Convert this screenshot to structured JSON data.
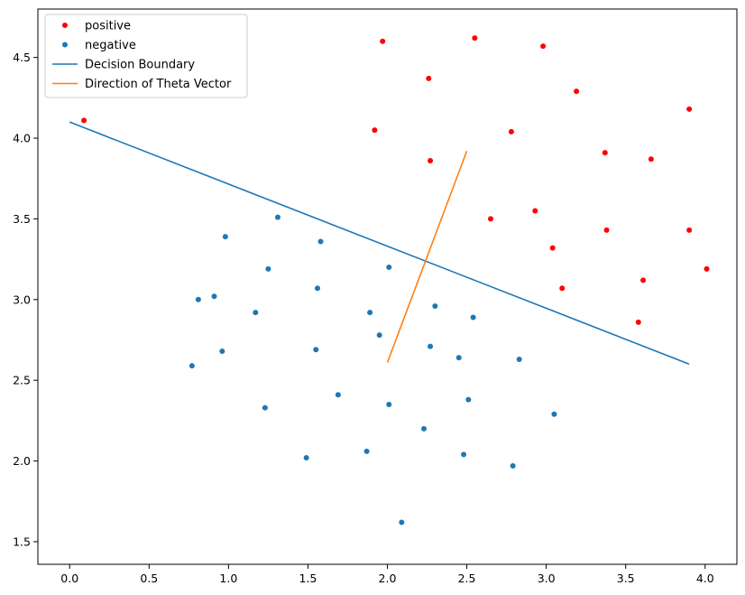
{
  "chart_data": {
    "type": "scatter",
    "xlim": [
      -0.2,
      4.2
    ],
    "ylim": [
      1.36,
      4.8
    ],
    "x_ticks": [
      0.0,
      0.5,
      1.0,
      1.5,
      2.0,
      2.5,
      3.0,
      3.5,
      4.0
    ],
    "x_tick_labels": [
      "0.0",
      "0.5",
      "1.0",
      "1.5",
      "2.0",
      "2.5",
      "3.0",
      "3.5",
      "4.0"
    ],
    "y_ticks": [
      1.5,
      2.0,
      2.5,
      3.0,
      3.5,
      4.0,
      4.5
    ],
    "y_tick_labels": [
      "1.5",
      "2.0",
      "2.5",
      "3.0",
      "3.5",
      "4.0",
      "4.5"
    ],
    "grid": false,
    "legend_position": "top-left",
    "series": [
      {
        "name": "positive",
        "kind": "scatter",
        "color": "#ff0000",
        "points": [
          [
            0.09,
            4.11
          ],
          [
            1.97,
            4.6
          ],
          [
            2.55,
            4.62
          ],
          [
            2.98,
            4.57
          ],
          [
            2.26,
            4.37
          ],
          [
            3.19,
            4.29
          ],
          [
            3.9,
            4.18
          ],
          [
            1.92,
            4.05
          ],
          [
            2.78,
            4.04
          ],
          [
            2.27,
            3.86
          ],
          [
            3.37,
            3.91
          ],
          [
            3.66,
            3.87
          ],
          [
            2.65,
            3.5
          ],
          [
            2.93,
            3.55
          ],
          [
            3.38,
            3.43
          ],
          [
            3.9,
            3.43
          ],
          [
            3.04,
            3.32
          ],
          [
            4.01,
            3.19
          ],
          [
            3.61,
            3.12
          ],
          [
            3.1,
            3.07
          ],
          [
            3.58,
            2.86
          ]
        ]
      },
      {
        "name": "negative",
        "kind": "scatter",
        "color": "#1f77b4",
        "points": [
          [
            1.31,
            3.51
          ],
          [
            0.98,
            3.39
          ],
          [
            1.58,
            3.36
          ],
          [
            1.25,
            3.19
          ],
          [
            2.01,
            3.2
          ],
          [
            1.56,
            3.07
          ],
          [
            0.81,
            3.0
          ],
          [
            0.91,
            3.02
          ],
          [
            1.17,
            2.92
          ],
          [
            1.89,
            2.92
          ],
          [
            2.3,
            2.96
          ],
          [
            2.54,
            2.89
          ],
          [
            1.95,
            2.78
          ],
          [
            1.55,
            2.69
          ],
          [
            0.96,
            2.68
          ],
          [
            2.27,
            2.71
          ],
          [
            2.45,
            2.64
          ],
          [
            2.83,
            2.63
          ],
          [
            0.77,
            2.59
          ],
          [
            1.69,
            2.41
          ],
          [
            2.01,
            2.35
          ],
          [
            2.51,
            2.38
          ],
          [
            1.23,
            2.33
          ],
          [
            3.05,
            2.29
          ],
          [
            2.23,
            2.2
          ],
          [
            1.87,
            2.06
          ],
          [
            1.49,
            2.02
          ],
          [
            2.48,
            2.04
          ],
          [
            2.79,
            1.97
          ],
          [
            2.09,
            1.62
          ]
        ]
      },
      {
        "name": "Decision Boundary",
        "kind": "line",
        "color": "#1f77b4",
        "points": [
          [
            0.0,
            4.1
          ],
          [
            3.9,
            2.6
          ]
        ]
      },
      {
        "name": "Direction of Theta Vector",
        "kind": "line",
        "color": "#ff7f0e",
        "points": [
          [
            2.0,
            2.61
          ],
          [
            2.5,
            3.92
          ]
        ]
      }
    ]
  }
}
